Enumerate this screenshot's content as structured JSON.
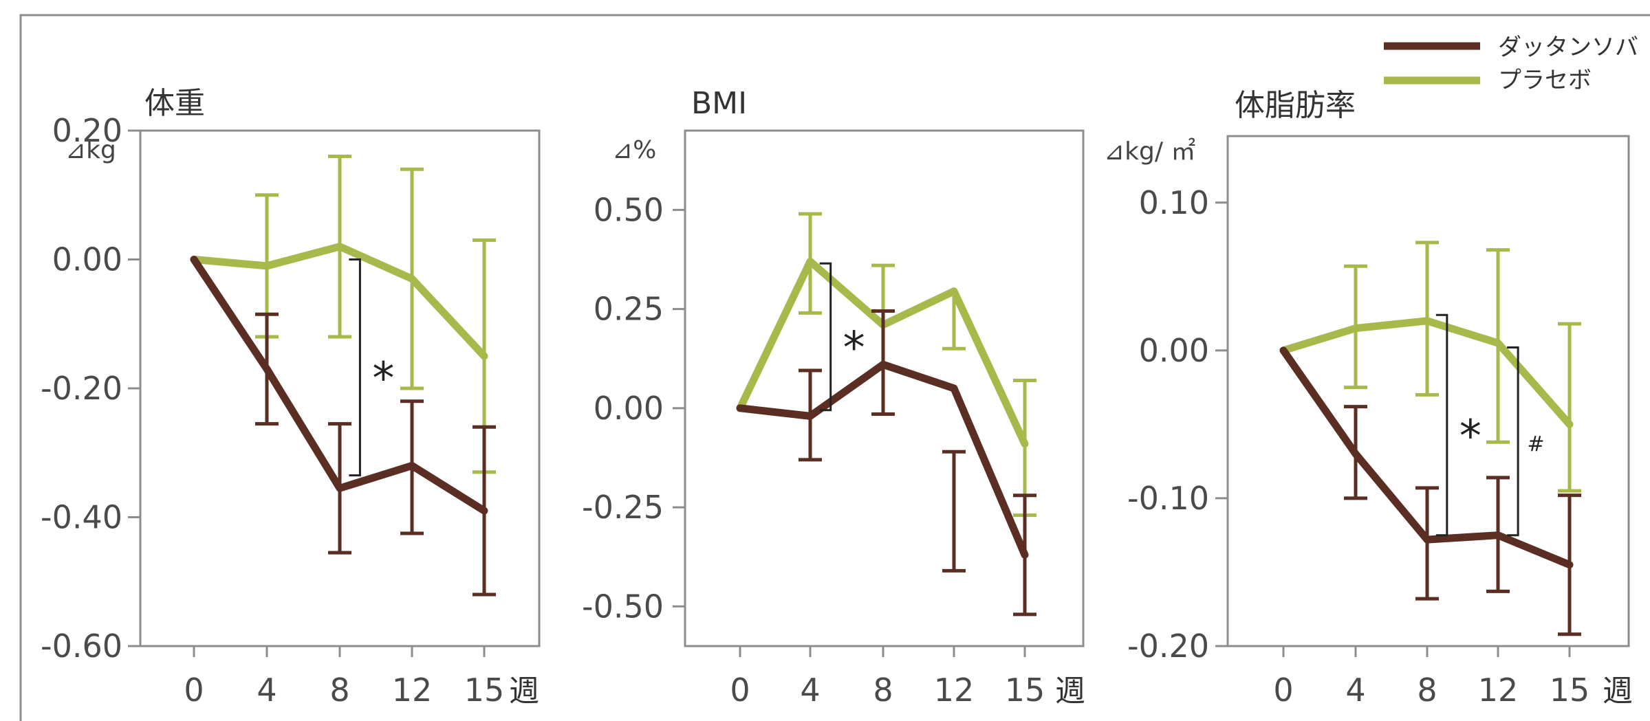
{
  "legend": {
    "position": "top-right",
    "items": [
      {
        "label": "ダッタンソバ",
        "color": "#5a2e22"
      },
      {
        "label": "プラセボ",
        "color": "#a8b84a"
      }
    ]
  },
  "chart_data": [
    {
      "type": "line",
      "title": "体重",
      "ylabel": "⊿kg",
      "xlabel": "週",
      "x": [
        0,
        4,
        8,
        12,
        15
      ],
      "xticks": [
        "0",
        "4",
        "8",
        "12",
        "15"
      ],
      "ylim": [
        -0.6,
        0.2
      ],
      "yticks": [
        "0.20",
        "0.00",
        "-0.20",
        "-0.40",
        "-0.60"
      ],
      "ytick_values": [
        0.2,
        0.0,
        -0.2,
        -0.4,
        -0.6
      ],
      "grid": false,
      "series": [
        {
          "name": "プラセボ",
          "color": "#a8b84a",
          "values": [
            0.0,
            -0.01,
            0.02,
            -0.03,
            -0.15
          ],
          "err_low": [
            null,
            -0.12,
            -0.12,
            -0.2,
            -0.33
          ],
          "err_high": [
            null,
            0.1,
            0.16,
            0.14,
            0.03
          ]
        },
        {
          "name": "ダッタンソバ",
          "color": "#5a2e22",
          "values": [
            0.0,
            -0.17,
            -0.355,
            -0.32,
            -0.39
          ],
          "err_low": [
            null,
            -0.255,
            -0.455,
            -0.425,
            -0.52
          ],
          "err_high": [
            null,
            -0.085,
            -0.255,
            -0.22,
            -0.26
          ]
        }
      ],
      "annotations": [
        {
          "text": "*",
          "x_between": [
            8,
            12
          ],
          "y_top": 0.0,
          "y_bottom": -0.335
        }
      ]
    },
    {
      "type": "line",
      "title": "BMI",
      "ylabel": "⊿%",
      "xlabel": "週",
      "x": [
        0,
        4,
        8,
        12,
        15
      ],
      "xticks": [
        "0",
        "4",
        "8",
        "12",
        "15"
      ],
      "ylim": [
        -0.6,
        0.7
      ],
      "yticks": [
        "0.50",
        "0.25",
        "0.00",
        "-0.25",
        "-0.50"
      ],
      "ytick_values": [
        0.5,
        0.25,
        0.0,
        -0.25,
        -0.5
      ],
      "grid": false,
      "series": [
        {
          "name": "プラセボ",
          "color": "#a8b84a",
          "values": [
            0.0,
            0.37,
            0.21,
            0.295,
            -0.09
          ],
          "err_low": [
            null,
            0.24,
            null,
            0.15,
            -0.27
          ],
          "err_high": [
            null,
            0.49,
            0.36,
            null,
            0.07
          ]
        },
        {
          "name": "ダッタンソバ",
          "color": "#5a2e22",
          "values": [
            0.0,
            -0.02,
            0.11,
            0.05,
            -0.37
          ],
          "err_low": [
            null,
            -0.13,
            -0.015,
            -0.41,
            -0.52
          ],
          "err_high": [
            null,
            0.095,
            0.245,
            -0.11,
            -0.22
          ]
        }
      ],
      "annotations": [
        {
          "text": "*",
          "x_between": [
            4,
            8
          ],
          "y_top": 0.365,
          "y_bottom": -0.005
        }
      ]
    },
    {
      "type": "line",
      "title": "体脂肪率",
      "ylabel": "⊿kg/ ㎡",
      "xlabel": "週",
      "x": [
        0,
        4,
        8,
        12,
        15
      ],
      "xticks": [
        "0",
        "4",
        "8",
        "12",
        "15"
      ],
      "ylim": [
        -0.2,
        0.145
      ],
      "yticks": [
        "0.10",
        "0.00",
        "-0.10",
        "-0.20"
      ],
      "ytick_values": [
        0.1,
        0.0,
        -0.1,
        -0.2
      ],
      "grid": false,
      "series": [
        {
          "name": "プラセボ",
          "color": "#a8b84a",
          "values": [
            0.0,
            0.015,
            0.02,
            0.005,
            -0.05
          ],
          "err_low": [
            null,
            -0.025,
            -0.03,
            -0.062,
            -0.095
          ],
          "err_high": [
            null,
            0.057,
            0.073,
            0.068,
            0.018
          ]
        },
        {
          "name": "ダッタンソバ",
          "color": "#5a2e22",
          "values": [
            0.0,
            -0.07,
            -0.128,
            -0.125,
            -0.145
          ],
          "err_low": [
            null,
            -0.1,
            -0.168,
            -0.163,
            -0.192
          ],
          "err_high": [
            null,
            -0.038,
            -0.093,
            -0.086,
            -0.098
          ]
        }
      ],
      "annotations": [
        {
          "text": "*",
          "x_between": [
            8,
            12
          ],
          "y_top": 0.024,
          "y_bottom": -0.125
        },
        {
          "text": "#",
          "x_between": [
            12,
            15
          ],
          "y_top": 0.002,
          "y_bottom": -0.125
        }
      ]
    }
  ]
}
